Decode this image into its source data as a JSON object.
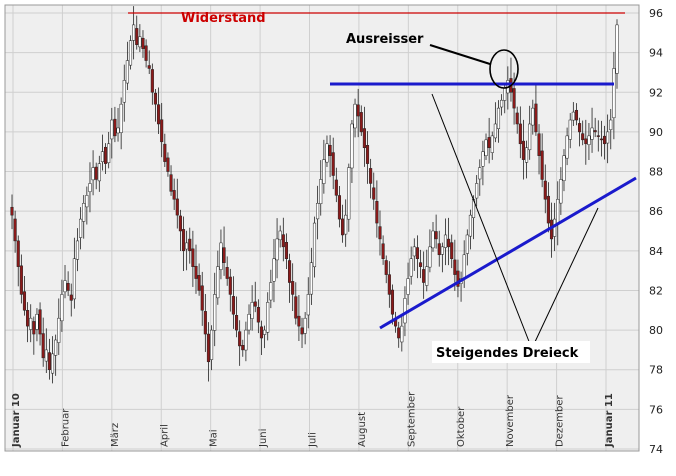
{
  "chart_data": {
    "type": "candlestick",
    "title": "",
    "xlabel": "",
    "ylabel": "",
    "ylim": [
      74,
      96
    ],
    "y_ticks": [
      74,
      76,
      78,
      80,
      82,
      84,
      86,
      88,
      90,
      92,
      94,
      96
    ],
    "x_ticks": [
      {
        "label": "Januar 10",
        "bold": true
      },
      {
        "label": "Februar",
        "bold": false
      },
      {
        "label": "März",
        "bold": false
      },
      {
        "label": "April",
        "bold": false
      },
      {
        "label": "Mai",
        "bold": false
      },
      {
        "label": "Juni",
        "bold": false
      },
      {
        "label": "Juli",
        "bold": false
      },
      {
        "label": "August",
        "bold": false
      },
      {
        "label": "September",
        "bold": false
      },
      {
        "label": "Oktober",
        "bold": false
      },
      {
        "label": "November",
        "bold": false
      },
      {
        "label": "Dezember",
        "bold": false
      },
      {
        "label": "Januar 11",
        "bold": true
      }
    ],
    "grid": true,
    "colors": {
      "up_candle": "#ffffff",
      "down_candle": "#8b1a1a",
      "wick": "#222222",
      "resistance": "#cc0000",
      "trendline": "#1a1acc",
      "grid": "#cfcfcf",
      "plot_bg": "#efefef"
    },
    "series_close": [
      85.8,
      84.5,
      83.2,
      81.8,
      81.0,
      80.2,
      80.6,
      79.8,
      80.8,
      79.8,
      78.6,
      79.0,
      78.0,
      78.8,
      79.5,
      80.6,
      81.8,
      82.5,
      82.0,
      81.5,
      83.6,
      84.5,
      85.6,
      86.4,
      86.8,
      87.4,
      88.2,
      87.6,
      88.4,
      89.0,
      88.4,
      89.4,
      90.6,
      89.8,
      90.2,
      91.4,
      92.6,
      93.6,
      94.6,
      95.4,
      94.4,
      94.8,
      94.2,
      93.6,
      93.2,
      92.0,
      91.4,
      90.4,
      89.5,
      88.5,
      88.0,
      87.0,
      86.6,
      85.8,
      85.0,
      84.0,
      84.4,
      84.0,
      83.2,
      82.6,
      82.0,
      81.0,
      79.8,
      78.4,
      80.0,
      81.8,
      83.2,
      84.4,
      83.4,
      82.6,
      81.8,
      80.8,
      80.0,
      79.2,
      79.0,
      80.0,
      80.8,
      81.4,
      81.2,
      80.4,
      79.6,
      80.0,
      81.4,
      82.4,
      83.6,
      84.6,
      85.0,
      84.2,
      83.6,
      82.4,
      81.8,
      80.6,
      80.2,
      79.8,
      80.6,
      81.8,
      83.4,
      85.4,
      86.4,
      87.6,
      88.6,
      89.4,
      88.8,
      87.8,
      86.8,
      85.6,
      84.8,
      85.8,
      88.2,
      90.4,
      91.4,
      90.8,
      90.0,
      89.2,
      88.4,
      87.4,
      86.6,
      85.4,
      84.6,
      83.6,
      82.8,
      81.8,
      80.8,
      80.2,
      79.6,
      80.2,
      81.6,
      82.6,
      83.6,
      84.2,
      83.6,
      83.2,
      82.4,
      83.2,
      84.2,
      85.0,
      84.6,
      83.8,
      84.2,
      84.8,
      84.2,
      83.6,
      82.8,
      82.2,
      82.6,
      83.8,
      84.8,
      85.8,
      86.6,
      87.4,
      88.2,
      89.0,
      89.6,
      89.2,
      89.8,
      90.4,
      91.2,
      91.6,
      92.2,
      92.6,
      92.0,
      91.2,
      90.4,
      89.4,
      88.6,
      89.2,
      90.4,
      91.2,
      90.0,
      88.8,
      87.6,
      86.6,
      85.4,
      84.6,
      85.6,
      86.6,
      87.6,
      88.8,
      89.8,
      90.6,
      91.0,
      90.6,
      90.0,
      89.6,
      89.4,
      89.8,
      90.2,
      90.0,
      89.8,
      89.6,
      89.4,
      90.0,
      90.6,
      93.2,
      95.4
    ]
  },
  "annotations": {
    "resistance_label": "Widerstand",
    "outlier_label": "Ausreisser",
    "triangle_label": "Steigendes Dreieck"
  }
}
